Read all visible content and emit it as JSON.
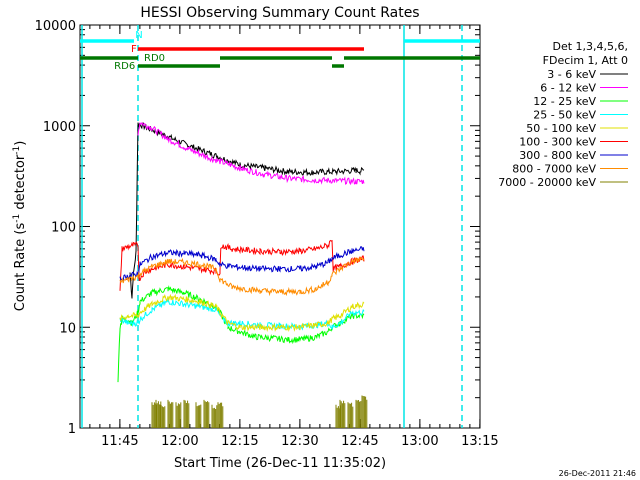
{
  "chart_data": {
    "type": "line",
    "title": "HESSI Observing Summary Count Rates",
    "xlabel": "Start Time (26-Dec-11 11:35:02)",
    "ylabel_main": "Count Rate (s",
    "ylabel_sup1": "-1",
    "ylabel_mid": " detector",
    "ylabel_sup2": "-1",
    "ylabel_end": ")",
    "ylog": true,
    "ylim": [
      1,
      10000
    ],
    "xlim_minutes": [
      0,
      100
    ],
    "xticks": [
      {
        "label": "11:45",
        "t": 9.97
      },
      {
        "label": "12:00",
        "t": 24.97
      },
      {
        "label": "12:15",
        "t": 39.97
      },
      {
        "label": "12:30",
        "t": 54.97
      },
      {
        "label": "12:45",
        "t": 69.97
      },
      {
        "label": "13:00",
        "t": 84.97
      },
      {
        "label": "13:15",
        "t": 99.97
      }
    ],
    "yticks": [
      {
        "label": "1",
        "v": 1
      },
      {
        "label": "10",
        "v": 10
      },
      {
        "label": "100",
        "v": 100
      },
      {
        "label": "1000",
        "v": 1000
      },
      {
        "label": "10000",
        "v": 10000
      }
    ],
    "legend_placement": "top-right",
    "legend_header": [
      "Det 1,3,4,5,6,",
      "FDecim 1, Att 0"
    ],
    "series": [
      {
        "name": "3 - 6 keV",
        "color": "#000000",
        "points": [
          [
            12.5,
            35
          ],
          [
            13,
            20
          ],
          [
            13.3,
            32
          ],
          [
            14,
            55
          ],
          [
            14.5,
            1050
          ],
          [
            17,
            950
          ],
          [
            22,
            780
          ],
          [
            27,
            640
          ],
          [
            33,
            520
          ],
          [
            40,
            410
          ],
          [
            46,
            380
          ],
          [
            52,
            350
          ],
          [
            58,
            345
          ],
          [
            64,
            350
          ],
          [
            69,
            360
          ],
          [
            70,
            355
          ],
          [
            71,
            360
          ]
        ]
      },
      {
        "name": "6 - 12 keV",
        "color": "#ff00ff",
        "points": [
          [
            14.5,
            850
          ],
          [
            15,
            1080
          ],
          [
            18,
            950
          ],
          [
            22,
            740
          ],
          [
            27,
            590
          ],
          [
            33,
            470
          ],
          [
            40,
            380
          ],
          [
            46,
            330
          ],
          [
            52,
            300
          ],
          [
            58,
            290
          ],
          [
            64,
            285
          ],
          [
            69,
            280
          ],
          [
            71,
            280
          ]
        ]
      },
      {
        "name": "12 - 25 keV",
        "color": "#00ff00",
        "points": [
          [
            9.5,
            3
          ],
          [
            10,
            10
          ],
          [
            10.5,
            12
          ],
          [
            12,
            12
          ],
          [
            13,
            11
          ],
          [
            14.5,
            14
          ],
          [
            15,
            18
          ],
          [
            18,
            22
          ],
          [
            22,
            24
          ],
          [
            26,
            22
          ],
          [
            30,
            19
          ],
          [
            34,
            16
          ],
          [
            35,
            14
          ],
          [
            37,
            10
          ],
          [
            40,
            9
          ],
          [
            44,
            8
          ],
          [
            48,
            7.8
          ],
          [
            52,
            7.5
          ],
          [
            56,
            7.6
          ],
          [
            59,
            8
          ],
          [
            62,
            9
          ],
          [
            63,
            10
          ],
          [
            65,
            11
          ],
          [
            68,
            13
          ],
          [
            71,
            13
          ]
        ]
      },
      {
        "name": "25 - 50 keV",
        "color": "#00ffff",
        "points": [
          [
            10,
            12
          ],
          [
            12,
            11
          ],
          [
            14.5,
            11
          ],
          [
            15,
            12
          ],
          [
            18,
            15
          ],
          [
            22,
            18
          ],
          [
            26,
            17
          ],
          [
            30,
            16
          ],
          [
            34,
            15
          ],
          [
            35,
            13
          ],
          [
            37,
            11
          ],
          [
            40,
            11
          ],
          [
            45,
            10.5
          ],
          [
            50,
            10.3
          ],
          [
            55,
            10.2
          ],
          [
            59,
            10.5
          ],
          [
            62,
            11
          ],
          [
            63,
            10
          ],
          [
            65,
            11
          ],
          [
            68,
            14
          ],
          [
            71,
            14
          ]
        ]
      },
      {
        "name": "50 - 100 keV",
        "color": "#e0e000",
        "points": [
          [
            10,
            12
          ],
          [
            12,
            13
          ],
          [
            14.5,
            13
          ],
          [
            15,
            14
          ],
          [
            18,
            17
          ],
          [
            22,
            20
          ],
          [
            26,
            19
          ],
          [
            30,
            18
          ],
          [
            34,
            16
          ],
          [
            35,
            14
          ],
          [
            37,
            11
          ],
          [
            40,
            10
          ],
          [
            45,
            10
          ],
          [
            50,
            10
          ],
          [
            55,
            10
          ],
          [
            59,
            10.5
          ],
          [
            62,
            11
          ],
          [
            63,
            12
          ],
          [
            65,
            13
          ],
          [
            68,
            16
          ],
          [
            71,
            17
          ]
        ]
      },
      {
        "name": "100 - 300 keV",
        "color": "#ff0000",
        "points": [
          [
            10,
            22
          ],
          [
            10.5,
            60
          ],
          [
            13,
            65
          ],
          [
            14.5,
            65
          ],
          [
            14.8,
            30
          ],
          [
            16,
            35
          ],
          [
            18,
            38
          ],
          [
            22,
            42
          ],
          [
            26,
            40
          ],
          [
            30,
            38
          ],
          [
            34,
            36
          ],
          [
            35,
            34
          ],
          [
            35.2,
            65
          ],
          [
            38,
            60
          ],
          [
            45,
            57
          ],
          [
            50,
            56
          ],
          [
            55,
            57
          ],
          [
            59,
            60
          ],
          [
            62,
            65
          ],
          [
            63,
            75
          ],
          [
            63.3,
            38
          ],
          [
            65,
            40
          ],
          [
            68,
            45
          ],
          [
            71,
            48
          ]
        ]
      },
      {
        "name": "300 - 800 keV",
        "color": "#0000cc",
        "points": [
          [
            10,
            30
          ],
          [
            12,
            32
          ],
          [
            14.5,
            34
          ],
          [
            15,
            42
          ],
          [
            18,
            50
          ],
          [
            22,
            55
          ],
          [
            26,
            54
          ],
          [
            30,
            52
          ],
          [
            34,
            47
          ],
          [
            35,
            42
          ],
          [
            38,
            40
          ],
          [
            45,
            38
          ],
          [
            50,
            38
          ],
          [
            55,
            38
          ],
          [
            59,
            40
          ],
          [
            62,
            44
          ],
          [
            63,
            48
          ],
          [
            65,
            52
          ],
          [
            68,
            57
          ],
          [
            71,
            60
          ]
        ]
      },
      {
        "name": "800 - 7000 keV",
        "color": "#ff8c00",
        "points": [
          [
            10,
            28
          ],
          [
            12,
            30
          ],
          [
            14.5,
            32
          ],
          [
            15,
            34
          ],
          [
            18,
            40
          ],
          [
            22,
            45
          ],
          [
            26,
            44
          ],
          [
            30,
            42
          ],
          [
            34,
            38
          ],
          [
            35,
            30
          ],
          [
            38,
            25
          ],
          [
            45,
            23
          ],
          [
            50,
            22.5
          ],
          [
            55,
            22.5
          ],
          [
            59,
            24
          ],
          [
            62,
            28
          ],
          [
            63,
            33
          ],
          [
            65,
            38
          ],
          [
            68,
            45
          ],
          [
            71,
            48
          ]
        ]
      },
      {
        "name": "7000 - 20000 keV",
        "color": "#808000",
        "points": [
          [
            18,
            1.8
          ],
          [
            19,
            1.9
          ],
          [
            20,
            1.7
          ],
          [
            22,
            1.9
          ],
          [
            24,
            1.8
          ],
          [
            26,
            1.9
          ],
          [
            29,
            1.8
          ],
          [
            31,
            1.9
          ],
          [
            33,
            1.7
          ],
          [
            34.5,
            1.8
          ],
          [
            64,
            1.7
          ],
          [
            65,
            1.9
          ],
          [
            67,
            1.8
          ],
          [
            69,
            1.9
          ],
          [
            70.5,
            2.1
          ]
        ]
      }
    ],
    "bars": [
      {
        "label": "N",
        "color": "#00ffff",
        "segments": [
          [
            0,
            13.5
          ],
          [
            81,
            100
          ]
        ]
      },
      {
        "label": "F",
        "color": "#ff0000",
        "segments": [
          [
            14.5,
            71
          ]
        ]
      },
      {
        "label": "RD0",
        "color": "#007700",
        "segments": [
          [
            0,
            14.5
          ],
          [
            35,
            63
          ],
          [
            66,
            100
          ]
        ]
      },
      {
        "label": "RD6",
        "color": "#007700",
        "segments": [
          [
            14.5,
            35
          ],
          [
            63,
            66
          ]
        ]
      }
    ],
    "vlines": [
      {
        "t": 0.5,
        "style": "solid"
      },
      {
        "t": 14.5,
        "style": "dashed"
      },
      {
        "t": 81,
        "style": "solid"
      },
      {
        "t": 95.5,
        "style": "dashed"
      }
    ],
    "timestamp": "26-Dec-2011 21:46"
  }
}
